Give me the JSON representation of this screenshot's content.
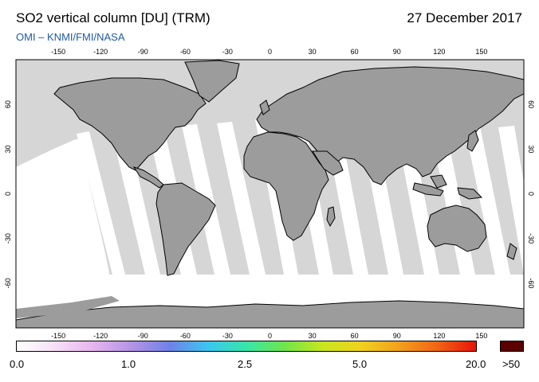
{
  "header": {
    "title": "SO2 vertical column [DU] (TRM)",
    "subtitle": "OMI  –  KNMI/FMI/NASA",
    "date": "27 December 2017"
  },
  "axes": {
    "lon_ticks": [
      "-150",
      "-120",
      "-90",
      "-60",
      "-30",
      "0",
      "30",
      "60",
      "90",
      "120",
      "150"
    ],
    "lat_ticks": [
      "60",
      "30",
      "0",
      "-30",
      "-60"
    ]
  },
  "colorbar": {
    "labels": [
      "0.0",
      "1.0",
      "2.5",
      "5.0",
      "20.0",
      ">50"
    ],
    "max_color": "#5a0000",
    "colors": [
      "#ffffff",
      "#f7dff7",
      "#e6b4ee",
      "#b493e6",
      "#6f82e8",
      "#3cc6f0",
      "#37e6a8",
      "#6ee64a",
      "#c8e61e",
      "#f0d21e",
      "#f0a01e",
      "#f06414",
      "#e6140a"
    ]
  },
  "colors": {
    "ocean": "#d6d6d6",
    "land": "#9c9c9c",
    "swath": "#ffffff"
  }
}
